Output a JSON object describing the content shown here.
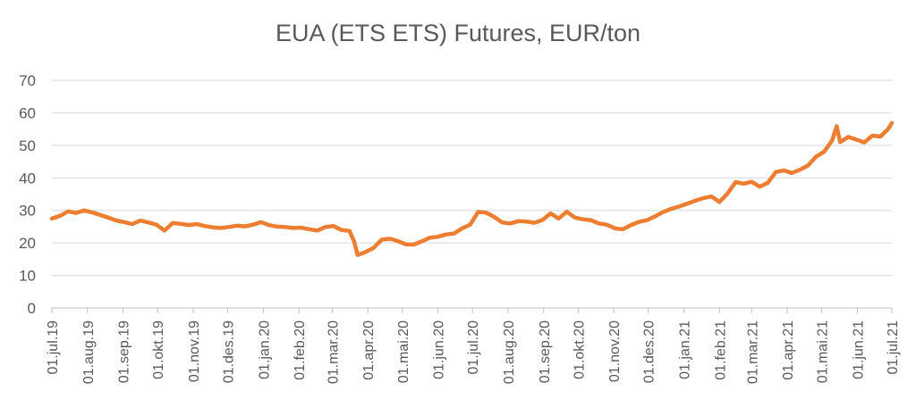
{
  "chart_data": {
    "type": "line",
    "title": "EUA (ETS ETS) Futures, EUR/ton",
    "xlabel": "",
    "ylabel": "",
    "ylim": [
      0,
      70
    ],
    "yticks": [
      "0",
      "10",
      "20",
      "30",
      "40",
      "50",
      "60",
      "70"
    ],
    "xticks": [
      "01.jul.19",
      "01.aug.19",
      "01.sep.19",
      "01.okt.19",
      "01.nov.19",
      "01.des.19",
      "01.jan.20",
      "01.feb.20",
      "01.mar.20",
      "01.apr.20",
      "01.mai.20",
      "01.jun.20",
      "01.jul.20",
      "01.aug.20",
      "01.sep.20",
      "01.okt.20",
      "01.nov.20",
      "01.des.20",
      "01.jan.21",
      "01.feb.21",
      "01.mar.21",
      "01.apr.21",
      "01.mai.21",
      "01.jun.21",
      "01.jul.21"
    ],
    "grid": true,
    "legend": "none",
    "color": "#ED7D31",
    "series": [
      {
        "x": [
          "2019-07-01",
          "2019-07-08",
          "2019-07-15",
          "2019-07-22",
          "2019-07-29",
          "2019-08-05",
          "2019-08-12",
          "2019-08-19",
          "2019-08-26",
          "2019-09-02",
          "2019-09-09",
          "2019-09-16",
          "2019-09-23",
          "2019-09-30",
          "2019-10-07",
          "2019-10-14",
          "2019-10-21",
          "2019-10-28",
          "2019-11-04",
          "2019-11-11",
          "2019-11-18",
          "2019-11-25",
          "2019-12-02",
          "2019-12-09",
          "2019-12-16",
          "2019-12-23",
          "2019-12-30",
          "2020-01-06",
          "2020-01-13",
          "2020-01-20",
          "2020-01-27",
          "2020-02-03",
          "2020-02-10",
          "2020-02-17",
          "2020-02-24",
          "2020-03-02",
          "2020-03-09",
          "2020-03-16",
          "2020-03-20",
          "2020-03-23",
          "2020-03-30",
          "2020-04-06",
          "2020-04-13",
          "2020-04-20",
          "2020-04-27",
          "2020-05-04",
          "2020-05-11",
          "2020-05-18",
          "2020-05-25",
          "2020-06-01",
          "2020-06-08",
          "2020-06-15",
          "2020-06-22",
          "2020-06-29",
          "2020-07-06",
          "2020-07-13",
          "2020-07-20",
          "2020-07-27",
          "2020-08-03",
          "2020-08-10",
          "2020-08-17",
          "2020-08-24",
          "2020-08-31",
          "2020-09-07",
          "2020-09-14",
          "2020-09-21",
          "2020-09-28",
          "2020-10-05",
          "2020-10-12",
          "2020-10-19",
          "2020-10-26",
          "2020-11-02",
          "2020-11-09",
          "2020-11-16",
          "2020-11-23",
          "2020-11-30",
          "2020-12-07",
          "2020-12-14",
          "2020-12-21",
          "2020-12-28",
          "2021-01-04",
          "2021-01-11",
          "2021-01-18",
          "2021-01-25",
          "2021-02-01",
          "2021-02-08",
          "2021-02-15",
          "2021-02-22",
          "2021-03-01",
          "2021-03-08",
          "2021-03-15",
          "2021-03-22",
          "2021-03-29",
          "2021-04-05",
          "2021-04-12",
          "2021-04-19",
          "2021-04-26",
          "2021-05-03",
          "2021-05-10",
          "2021-05-14",
          "2021-05-17",
          "2021-05-24",
          "2021-05-31",
          "2021-06-07",
          "2021-06-14",
          "2021-06-21",
          "2021-06-28",
          "2021-07-01"
        ],
        "values": [
          27.5,
          28.3,
          29.7,
          29.2,
          30.0,
          29.4,
          28.6,
          27.8,
          26.9,
          26.4,
          25.8,
          26.9,
          26.3,
          25.6,
          23.8,
          26.1,
          25.9,
          25.5,
          25.8,
          25.2,
          24.8,
          24.6,
          24.9,
          25.3,
          25.1,
          25.6,
          26.4,
          25.5,
          25.0,
          24.9,
          24.6,
          24.7,
          24.2,
          23.8,
          24.9,
          25.2,
          24.0,
          23.7,
          20.5,
          16.3,
          17.2,
          18.5,
          21.0,
          21.3,
          20.6,
          19.6,
          19.5,
          20.5,
          21.6,
          21.9,
          22.6,
          22.9,
          24.5,
          25.6,
          29.6,
          29.3,
          28.0,
          26.3,
          26.0,
          26.7,
          26.6,
          26.2,
          27.1,
          29.1,
          27.5,
          29.6,
          27.8,
          27.3,
          27.0,
          26.0,
          25.6,
          24.5,
          24.2,
          25.5,
          26.5,
          27.0,
          28.2,
          29.5,
          30.5,
          31.2,
          32.1,
          33.0,
          33.8,
          34.3,
          32.6,
          35.2,
          38.7,
          38.2,
          38.8,
          37.3,
          38.5,
          41.8,
          42.3,
          41.5,
          42.5,
          43.8,
          46.5,
          48.0,
          51.5,
          55.9,
          51.0,
          52.6,
          51.8,
          50.9,
          53.0,
          52.7,
          55.1,
          56.9
        ]
      }
    ]
  }
}
